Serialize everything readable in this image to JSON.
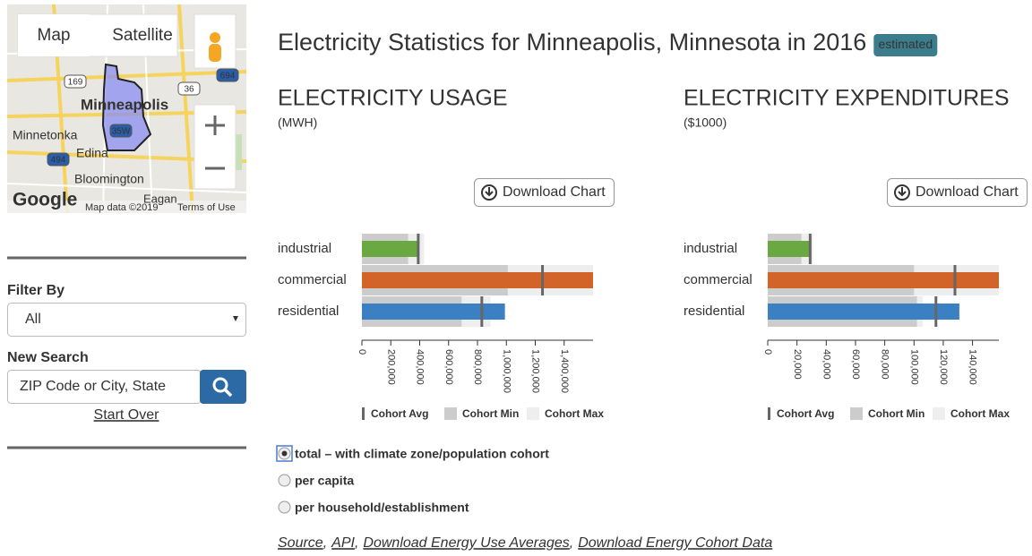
{
  "sidebar": {
    "map": {
      "buttons": [
        "Map",
        "Satellite"
      ],
      "places": [
        "Minneapolis",
        "Minnetonka",
        "Edina",
        "Bloomington",
        "Eagan"
      ],
      "shields": [
        "169",
        "36",
        "694",
        "35W",
        "494"
      ],
      "logo": "Google",
      "attribution": "Map data ©2019",
      "terms": "Terms of Use"
    },
    "filter_label": "Filter By",
    "filter_value": "All",
    "search_label": "New Search",
    "search_placeholder": "ZIP Code or City, State",
    "start_over": "Start Over"
  },
  "header": {
    "title": "Electricity Statistics for Minneapolis, Minnesota in 2016",
    "badge": "estimated"
  },
  "chart_data": [
    {
      "type": "bullet",
      "title": "ELECTRICITY USAGE",
      "unit": "(MWH)",
      "download": "Download Chart",
      "categories": [
        "industrial",
        "commercial",
        "residential"
      ],
      "values": [
        390000,
        1600000,
        990000
      ],
      "colors": [
        "#6aa842",
        "#d2642a",
        "#3a80c3"
      ],
      "series": [
        {
          "name": "Cohort Avg",
          "color": "#666666",
          "values": [
            390000,
            1250000,
            830000
          ]
        },
        {
          "name": "Cohort Min",
          "color": "#cccccc",
          "values": [
            320000,
            1010000,
            690000
          ]
        },
        {
          "name": "Cohort Max",
          "color": "#eeeeee",
          "values": [
            430000,
            1600000,
            890000
          ]
        }
      ],
      "xlim": [
        0,
        1600000
      ],
      "xticks": [
        0,
        {
          "value": 200000,
          "label": "200,000"
        },
        {
          "value": 400000,
          "label": "400,000"
        },
        {
          "value": 600000,
          "label": "600,000"
        },
        {
          "value": 800000,
          "label": "800,000"
        },
        {
          "value": 1000000,
          "label": "1,000,000"
        },
        {
          "value": 1200000,
          "label": "1,200,000"
        },
        {
          "value": 1400000,
          "label": "1,400,000"
        }
      ]
    },
    {
      "type": "bullet",
      "title": "ELECTRICITY EXPENDITURES",
      "unit": "($1000)",
      "download": "Download Chart",
      "categories": [
        "industrial",
        "commercial",
        "residential"
      ],
      "values": [
        29000,
        158000,
        131000
      ],
      "colors": [
        "#6aa842",
        "#d2642a",
        "#3a80c3"
      ],
      "series": [
        {
          "name": "Cohort Avg",
          "color": "#666666",
          "values": [
            29000,
            128000,
            115000
          ]
        },
        {
          "name": "Cohort Min",
          "color": "#cccccc",
          "values": [
            23000,
            100000,
            102000
          ]
        },
        {
          "name": "Cohort Max",
          "color": "#eeeeee",
          "values": [
            31000,
            158000,
            106000
          ]
        }
      ],
      "xlim": [
        0,
        158000
      ],
      "xticks": [
        0,
        {
          "value": 20000,
          "label": "20,000"
        },
        {
          "value": 40000,
          "label": "40,000"
        },
        {
          "value": 60000,
          "label": "60,000"
        },
        {
          "value": 80000,
          "label": "80,000"
        },
        {
          "value": 100000,
          "label": "100,000"
        },
        {
          "value": 120000,
          "label": "120,000"
        },
        {
          "value": 140000,
          "label": "140,000"
        }
      ]
    }
  ],
  "options": {
    "items": [
      "total – with climate zone/population cohort",
      "per capita",
      "per household/establishment"
    ],
    "selected": 0
  },
  "links": {
    "items": [
      "Source",
      "API",
      "Download Energy Use Averages",
      "Download Energy Cohort Data"
    ],
    "separator": ","
  }
}
